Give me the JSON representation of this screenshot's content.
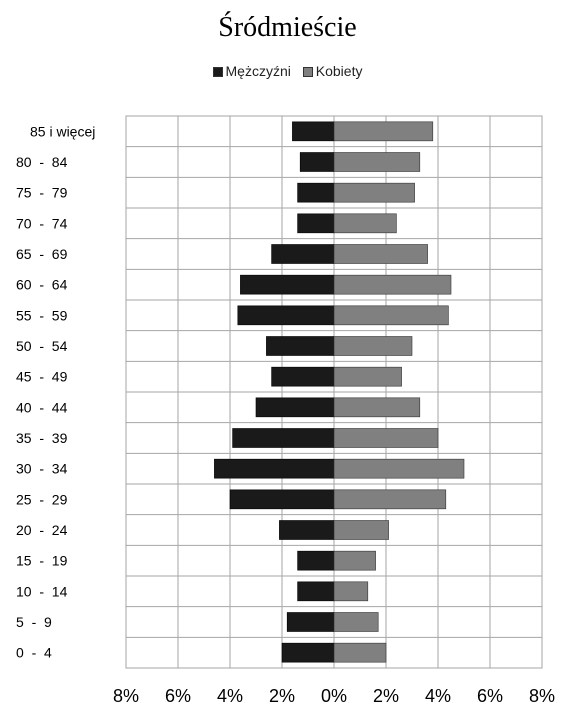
{
  "chart_data": {
    "type": "bar",
    "orientation": "horizontal",
    "title": "Śródmieście",
    "categories": [
      "85 i więcej",
      "80  -  84",
      "75  -  79",
      "70  -  74",
      "65  -  69",
      "60  -  64",
      "55  -  59",
      "50  -  54",
      "45  -  49",
      "40  -  44",
      "35  -  39",
      "30  -  34",
      "25  -  29",
      "20  -  24",
      "15  -  19",
      "10  -  14",
      "5  -  9",
      "0  -  4"
    ],
    "series": [
      {
        "name": "Mężczyźni",
        "color": "#1a1a1a",
        "values": [
          1.6,
          1.3,
          1.4,
          1.4,
          2.4,
          3.6,
          3.7,
          2.6,
          2.4,
          3.0,
          3.9,
          4.6,
          4.0,
          2.1,
          1.4,
          1.4,
          1.8,
          2.0
        ]
      },
      {
        "name": "Kobiety",
        "color": "#808080",
        "values": [
          3.8,
          3.3,
          3.1,
          2.4,
          3.6,
          4.5,
          4.4,
          3.0,
          2.6,
          3.3,
          4.0,
          5.0,
          4.3,
          2.1,
          1.6,
          1.3,
          1.7,
          2.0
        ]
      }
    ],
    "x_ticks": [
      "8%",
      "6%",
      "4%",
      "2%",
      "0%",
      "2%",
      "4%",
      "6%",
      "8%"
    ],
    "xlim": [
      -8,
      8
    ],
    "xlabel": "",
    "ylabel": "",
    "grid": true,
    "legend_position": "top-center"
  }
}
